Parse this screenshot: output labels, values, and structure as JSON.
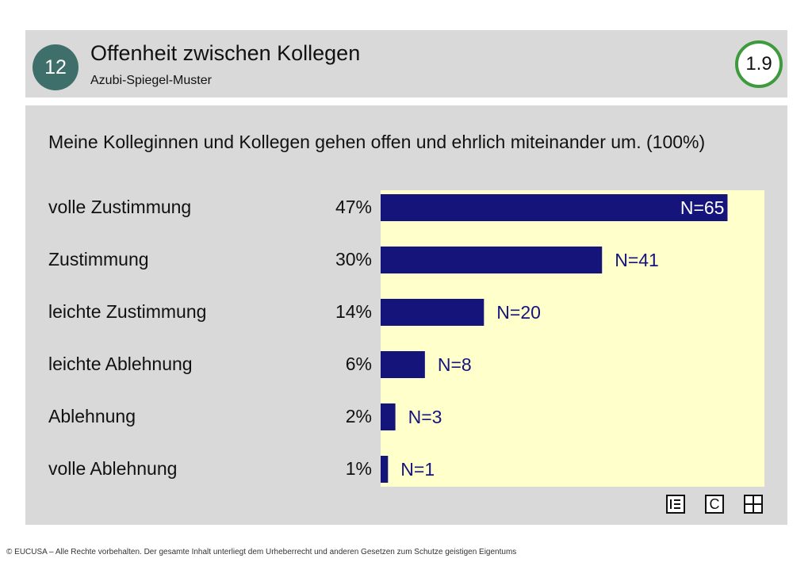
{
  "header": {
    "badge": "12",
    "title": "Offenheit zwischen Kollegen",
    "subtitle": "Azubi-Spiegel-Muster",
    "version": "1.9"
  },
  "question": "Meine Kolleginnen und Kollegen gehen offen und ehrlich miteinander um. (100%)",
  "chart_data": {
    "type": "bar",
    "orientation": "horizontal",
    "categories": [
      "volle Zustimmung",
      "Zustimmung",
      "leichte Zustimmung",
      "leichte Ablehnung",
      "Ablehnung",
      "volle Ablehnung"
    ],
    "percent_labels": [
      "47%",
      "30%",
      "14%",
      "6%",
      "2%",
      "1%"
    ],
    "values": [
      47,
      30,
      14,
      6,
      2,
      1
    ],
    "n_labels": [
      "N=65",
      "N=41",
      "N=20",
      "N=8",
      "N=3",
      "N=1"
    ],
    "n_values": [
      65,
      41,
      20,
      8,
      3,
      1
    ],
    "xlim": [
      0,
      52
    ],
    "bar_color": "#14147a",
    "label_color": "#14147a",
    "plot_background": "#ffffcc",
    "grid": false,
    "legend": "none"
  },
  "icons": [
    {
      "name": "list-icon"
    },
    {
      "name": "c-icon",
      "glyph": "C"
    },
    {
      "name": "grid-icon"
    }
  ],
  "footer": "© EUCUSA – Alle Rechte vorbehalten. Der gesamte Inhalt unterliegt dem Urheberrecht und anderen Gesetzen zum Schutze geistigen Eigentums"
}
